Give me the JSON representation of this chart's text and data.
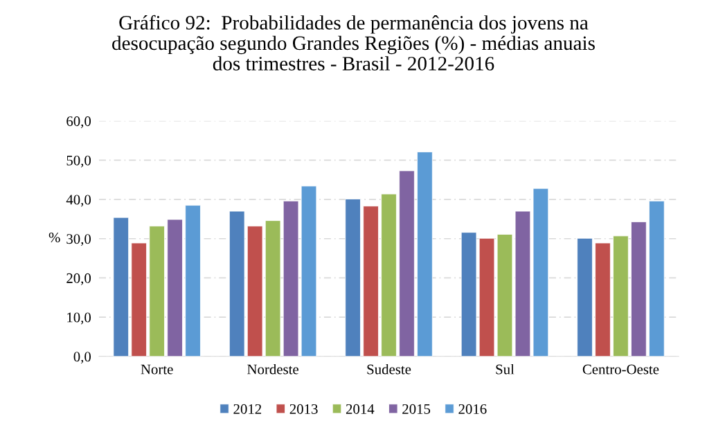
{
  "chart_data": {
    "type": "bar",
    "title": "Gráfico 92:  Probabilidades de permanência dos jovens na\ndesocupação segundo Grandes Regiões (%) - médias anuais\ndos trimestres - Brasil - 2012-2016",
    "ylabel": "%",
    "categories": [
      "Norte",
      "Nordeste",
      "Sudeste",
      "Sul",
      "Centro-Oeste"
    ],
    "series": [
      {
        "name": "2012",
        "color": "#4f81bd",
        "values": [
          35.4,
          37.0,
          40.1,
          31.6,
          30.1
        ]
      },
      {
        "name": "2013",
        "color": "#c0504d",
        "values": [
          28.9,
          33.2,
          38.3,
          30.1,
          28.9
        ]
      },
      {
        "name": "2014",
        "color": "#9bbb59",
        "values": [
          33.2,
          34.6,
          41.4,
          31.1,
          30.7
        ]
      },
      {
        "name": "2015",
        "color": "#8064a2",
        "values": [
          34.9,
          39.6,
          47.3,
          37.0,
          34.3
        ]
      },
      {
        "name": "2016",
        "color": "#5b9bd5",
        "values": [
          38.5,
          43.4,
          52.1,
          42.8,
          39.6
        ]
      }
    ],
    "ylim": [
      0,
      60
    ],
    "yticks": [
      {
        "value": 0,
        "label": "0,0"
      },
      {
        "value": 10,
        "label": "10,0"
      },
      {
        "value": 20,
        "label": "20,0"
      },
      {
        "value": 30,
        "label": "30,0"
      },
      {
        "value": 40,
        "label": "40,0"
      },
      {
        "value": 50,
        "label": "50,0"
      },
      {
        "value": 60,
        "label": "60,0"
      }
    ],
    "grid": "y",
    "legend": "bottom"
  }
}
